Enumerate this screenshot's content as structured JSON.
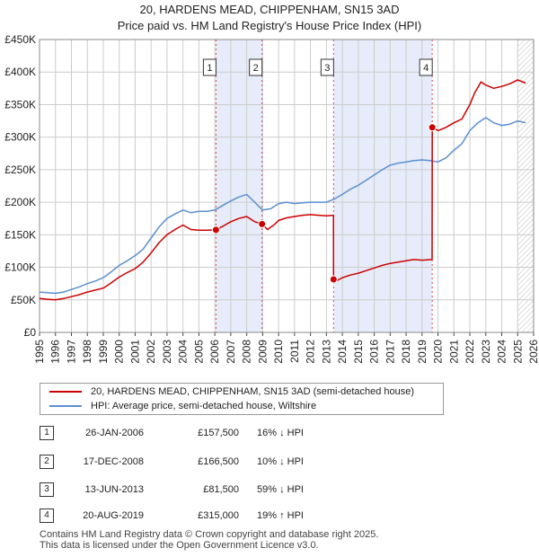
{
  "title_line1": "20, HARDENS MEAD, CHIPPENHAM, SN15 3AD",
  "title_line2": "Price paid vs. HM Land Registry's House Price Index (HPI)",
  "legend": {
    "property_label": "20, HARDENS MEAD, CHIPPENHAM, SN15 3AD (semi-detached house)",
    "hpi_label": "HPI: Average price, semi-detached house, Wiltshire"
  },
  "colors": {
    "property": "#cc0000",
    "hpi": "#5b8fd0",
    "shade": "#e6ecf9",
    "marker_line": "#dd4444",
    "grid": "#cccccc",
    "future_hatch": "#bbbbbb"
  },
  "sales": [
    {
      "num": "1",
      "date": "26-JAN-2006",
      "price": "£157,500",
      "hpi": "16% ↓ HPI"
    },
    {
      "num": "2",
      "date": "17-DEC-2008",
      "price": "£166,500",
      "hpi": "10% ↓ HPI"
    },
    {
      "num": "3",
      "date": "13-JUN-2013",
      "price": "£81,500",
      "hpi": "59% ↓ HPI"
    },
    {
      "num": "4",
      "date": "20-AUG-2019",
      "price": "£315,000",
      "hpi": "19% ↑ HPI"
    }
  ],
  "footer": {
    "line1": "Contains HM Land Registry data © Crown copyright and database right 2025.",
    "line2": "This data is licensed under the Open Government Licence v3.0."
  },
  "chart_data": {
    "type": "line",
    "title": "20, HARDENS MEAD, CHIPPENHAM, SN15 3AD",
    "subtitle": "Price paid vs. HM Land Registry's House Price Index (HPI)",
    "xlabel": "",
    "ylabel": "",
    "xlim": [
      1995,
      2026
    ],
    "ylim": [
      0,
      450000
    ],
    "x_ticks": [
      "1995",
      "1996",
      "1997",
      "1998",
      "1999",
      "2000",
      "2001",
      "2002",
      "2003",
      "2004",
      "2005",
      "2006",
      "2007",
      "2008",
      "2009",
      "2010",
      "2011",
      "2012",
      "2013",
      "2014",
      "2015",
      "2016",
      "2017",
      "2018",
      "2019",
      "2020",
      "2021",
      "2022",
      "2023",
      "2024",
      "2025",
      "2026"
    ],
    "y_ticks": [
      {
        "value": 0,
        "label": "£0"
      },
      {
        "value": 50000,
        "label": "£50K"
      },
      {
        "value": 100000,
        "label": "£100K"
      },
      {
        "value": 150000,
        "label": "£150K"
      },
      {
        "value": 200000,
        "label": "£200K"
      },
      {
        "value": 250000,
        "label": "£250K"
      },
      {
        "value": 300000,
        "label": "£300K"
      },
      {
        "value": 350000,
        "label": "£350K"
      },
      {
        "value": 400000,
        "label": "£400K"
      },
      {
        "value": 450000,
        "label": "£450K"
      }
    ],
    "shaded_ranges": [
      [
        2006.07,
        2008.96
      ],
      [
        2013.45,
        2019.64
      ]
    ],
    "future_from": 2025.0,
    "series": [
      {
        "name": "20, HARDENS MEAD, CHIPPENHAM, SN15 3AD (semi-detached house)",
        "color": "#cc0000",
        "x": [
          1995,
          1995.5,
          1996,
          1996.5,
          1997,
          1997.5,
          1998,
          1998.5,
          1999,
          1999.5,
          2000,
          2000.5,
          2001,
          2001.5,
          2002,
          2002.5,
          2003,
          2003.5,
          2004,
          2004.5,
          2005,
          2005.5,
          2006.07,
          2006.5,
          2007,
          2007.5,
          2008,
          2008.5,
          2008.96,
          2009.3,
          2009.7,
          2010,
          2010.5,
          2011,
          2011.5,
          2012,
          2012.5,
          2013,
          2013.44,
          2013.45,
          2013.7,
          2014,
          2014.5,
          2015,
          2015.5,
          2016,
          2016.5,
          2017,
          2017.5,
          2018,
          2018.5,
          2019,
          2019.63,
          2019.64,
          2020,
          2020.5,
          2021,
          2021.5,
          2022,
          2022.3,
          2022.7,
          2023,
          2023.5,
          2024,
          2024.5,
          2025,
          2025.5
        ],
        "y": [
          52000,
          51000,
          50000,
          52000,
          55000,
          58000,
          62000,
          65000,
          68000,
          76000,
          85000,
          92000,
          98000,
          108000,
          122000,
          138000,
          150000,
          158000,
          165000,
          158000,
          157000,
          157000,
          157500,
          163000,
          170000,
          175000,
          178000,
          170000,
          166500,
          158000,
          165000,
          172000,
          176000,
          178000,
          180000,
          181000,
          180000,
          179000,
          180000,
          81500,
          80000,
          84000,
          88000,
          91000,
          95000,
          99000,
          103000,
          106000,
          108000,
          110000,
          112000,
          111000,
          112000,
          315000,
          310000,
          315000,
          322000,
          328000,
          350000,
          368000,
          385000,
          380000,
          375000,
          378000,
          382000,
          388000,
          383000
        ]
      },
      {
        "name": "HPI: Average price, semi-detached house, Wiltshire",
        "color": "#5b8fd0",
        "x": [
          1995,
          1995.5,
          1996,
          1996.5,
          1997,
          1997.5,
          1998,
          1998.5,
          1999,
          1999.5,
          2000,
          2000.5,
          2001,
          2001.5,
          2002,
          2002.5,
          2003,
          2003.5,
          2004,
          2004.5,
          2005,
          2005.5,
          2006,
          2006.5,
          2007,
          2007.5,
          2008,
          2008.5,
          2009,
          2009.5,
          2010,
          2010.5,
          2011,
          2011.5,
          2012,
          2012.5,
          2013,
          2013.5,
          2014,
          2014.5,
          2015,
          2015.5,
          2016,
          2016.5,
          2017,
          2017.5,
          2018,
          2018.5,
          2019,
          2019.5,
          2020,
          2020.5,
          2021,
          2021.5,
          2022,
          2022.5,
          2023,
          2023.5,
          2024,
          2024.5,
          2025,
          2025.5
        ],
        "y": [
          62000,
          61000,
          60000,
          62000,
          66000,
          70000,
          75000,
          79000,
          84000,
          93000,
          103000,
          110000,
          118000,
          128000,
          145000,
          162000,
          175000,
          182000,
          188000,
          184000,
          186000,
          186000,
          188000,
          195000,
          202000,
          208000,
          212000,
          200000,
          188000,
          190000,
          198000,
          200000,
          198000,
          199000,
          200000,
          200000,
          200000,
          205000,
          212000,
          220000,
          226000,
          234000,
          242000,
          250000,
          257000,
          260000,
          262000,
          264000,
          265000,
          264000,
          262000,
          268000,
          280000,
          290000,
          310000,
          322000,
          330000,
          322000,
          318000,
          320000,
          325000,
          322000
        ]
      }
    ],
    "markers": [
      {
        "label": "1",
        "x": 2006.07,
        "y": 157500
      },
      {
        "label": "2",
        "x": 2008.96,
        "y": 166500
      },
      {
        "label": "3",
        "x": 2013.45,
        "y": 81500
      },
      {
        "label": "4",
        "x": 2019.64,
        "y": 315000
      }
    ]
  }
}
